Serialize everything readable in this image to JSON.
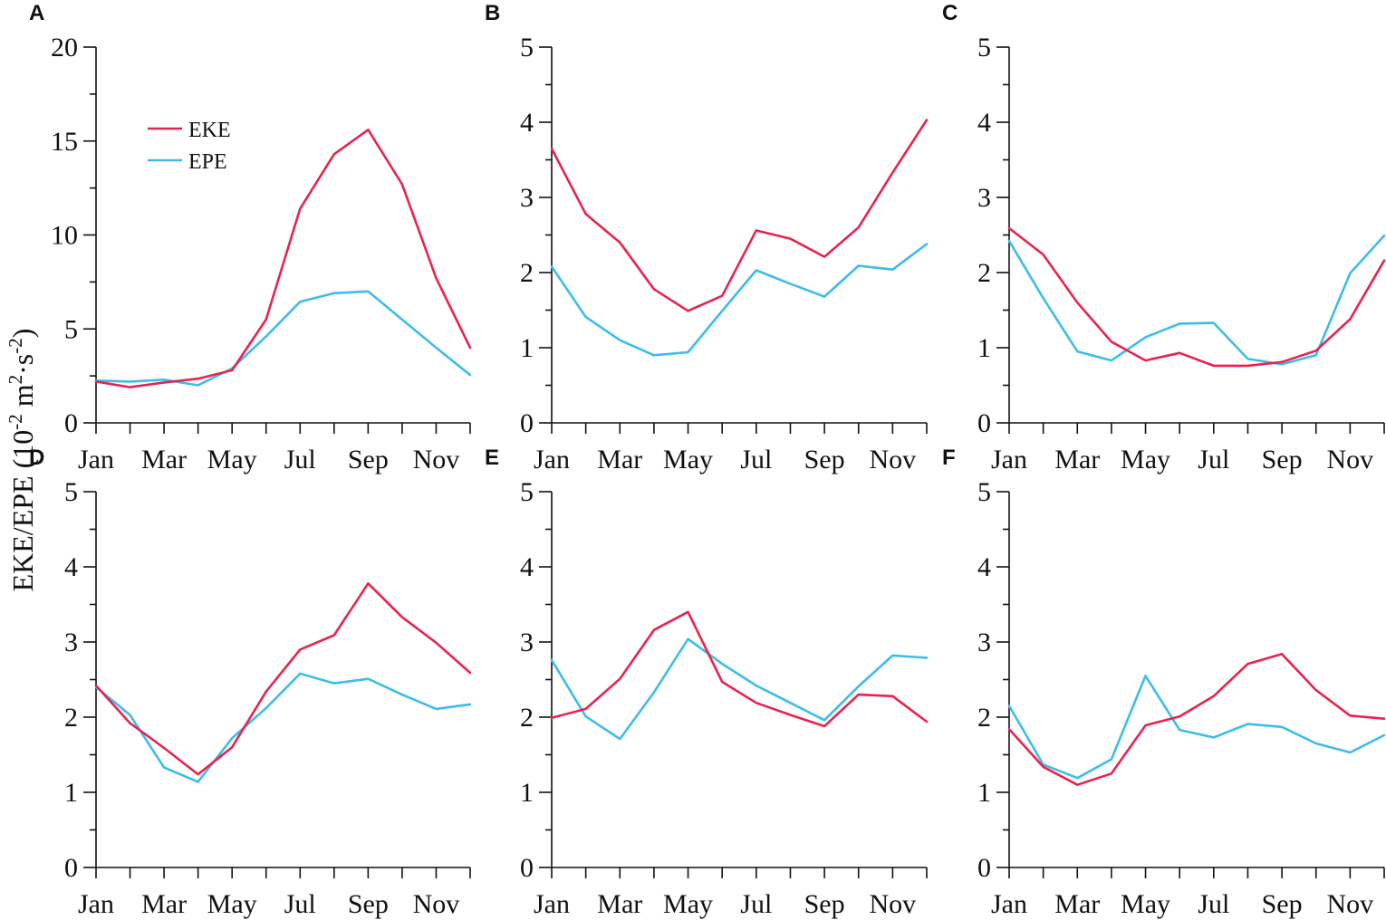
{
  "ylabel": {
    "main": "EKE/EPE (10",
    "exp1": "-2",
    "mid": " m",
    "exp2": "2",
    "mid2": "·s",
    "exp3": "-2",
    "tail": ")"
  },
  "legend": {
    "eke": "EKE",
    "epe": "EPE"
  },
  "colors": {
    "EKE": "#e8234f",
    "EPE": "#3dbde8"
  },
  "chart_data": [
    {
      "type": "line",
      "panel": "A",
      "categories": [
        "Jan",
        "Feb",
        "Mar",
        "Apr",
        "May",
        "Jun",
        "Jul",
        "Aug",
        "Sep",
        "Oct",
        "Nov",
        "Dec"
      ],
      "x_tick_labels": [
        "Jan",
        "Mar",
        "May",
        "Jul",
        "Sep",
        "Nov"
      ],
      "ylim": [
        0,
        20
      ],
      "yticks": [
        "0",
        "5",
        "10",
        "15",
        "20"
      ],
      "series": [
        {
          "name": "EKE",
          "values": [
            2.2,
            1.9,
            2.15,
            2.35,
            2.8,
            5.5,
            11.4,
            14.3,
            15.6,
            12.7,
            7.7,
            4.0
          ]
        },
        {
          "name": "EPE",
          "values": [
            2.25,
            2.2,
            2.3,
            2.0,
            2.9,
            4.6,
            6.45,
            6.9,
            7.0,
            5.5,
            4.0,
            2.55
          ]
        }
      ]
    },
    {
      "type": "line",
      "panel": "B",
      "categories": [
        "Jan",
        "Feb",
        "Mar",
        "Apr",
        "May",
        "Jun",
        "Jul",
        "Aug",
        "Sep",
        "Oct",
        "Nov",
        "Dec"
      ],
      "x_tick_labels": [
        "Jan",
        "Mar",
        "May",
        "Jul",
        "Sep",
        "Nov"
      ],
      "ylim": [
        0,
        5
      ],
      "yticks": [
        "0",
        "1",
        "2",
        "3",
        "4",
        "5"
      ],
      "series": [
        {
          "name": "EKE",
          "values": [
            3.65,
            2.78,
            2.4,
            1.78,
            1.49,
            1.69,
            2.56,
            2.45,
            2.21,
            2.6,
            3.33,
            4.03
          ]
        },
        {
          "name": "EPE",
          "values": [
            2.08,
            1.41,
            1.1,
            0.9,
            0.94,
            1.49,
            2.03,
            1.85,
            1.68,
            2.09,
            2.04,
            2.38
          ]
        }
      ]
    },
    {
      "type": "line",
      "panel": "C",
      "categories": [
        "Jan",
        "Feb",
        "Mar",
        "Apr",
        "May",
        "Jun",
        "Jul",
        "Aug",
        "Sep",
        "Oct",
        "Nov",
        "Dec"
      ],
      "x_tick_labels": [
        "Jan",
        "Mar",
        "May",
        "Jul",
        "Sep",
        "Nov"
      ],
      "ylim": [
        0,
        5
      ],
      "yticks": [
        "0",
        "1",
        "2",
        "3",
        "4",
        "5"
      ],
      "series": [
        {
          "name": "EKE",
          "values": [
            2.59,
            2.24,
            1.6,
            1.08,
            0.83,
            0.93,
            0.76,
            0.76,
            0.81,
            0.96,
            1.38,
            2.16
          ]
        },
        {
          "name": "EPE",
          "values": [
            2.42,
            1.66,
            0.95,
            0.83,
            1.14,
            1.32,
            1.33,
            0.85,
            0.78,
            0.9,
            1.99,
            2.49
          ]
        }
      ]
    },
    {
      "type": "line",
      "panel": "D",
      "categories": [
        "Jan",
        "Feb",
        "Mar",
        "Apr",
        "May",
        "Jun",
        "Jul",
        "Aug",
        "Sep",
        "Oct",
        "Nov",
        "Dec"
      ],
      "x_tick_labels": [
        "Jan",
        "Mar",
        "May",
        "Jul",
        "Sep",
        "Nov"
      ],
      "ylim": [
        0,
        5
      ],
      "yticks": [
        "0",
        "1",
        "2",
        "3",
        "4",
        "5"
      ],
      "series": [
        {
          "name": "EKE",
          "values": [
            2.42,
            1.92,
            1.59,
            1.24,
            1.6,
            2.34,
            2.9,
            3.09,
            3.78,
            3.33,
            2.99,
            2.59
          ]
        },
        {
          "name": "EPE",
          "values": [
            2.4,
            2.03,
            1.33,
            1.14,
            1.72,
            2.12,
            2.58,
            2.45,
            2.51,
            2.3,
            2.11,
            2.17
          ]
        }
      ]
    },
    {
      "type": "line",
      "panel": "E",
      "categories": [
        "Jan",
        "Feb",
        "Mar",
        "Apr",
        "May",
        "Jun",
        "Jul",
        "Aug",
        "Sep",
        "Oct",
        "Nov",
        "Dec"
      ],
      "x_tick_labels": [
        "Jan",
        "Mar",
        "May",
        "Jul",
        "Sep",
        "Nov"
      ],
      "ylim": [
        0,
        5
      ],
      "yticks": [
        "0",
        "1",
        "2",
        "3",
        "4",
        "5"
      ],
      "series": [
        {
          "name": "EKE",
          "values": [
            1.99,
            2.11,
            2.51,
            3.16,
            3.4,
            2.47,
            2.19,
            2.03,
            1.88,
            2.3,
            2.28,
            1.94
          ]
        },
        {
          "name": "EPE",
          "values": [
            2.76,
            2.01,
            1.71,
            2.33,
            3.04,
            2.71,
            2.42,
            2.19,
            1.96,
            2.41,
            2.82,
            2.79
          ]
        }
      ]
    },
    {
      "type": "line",
      "panel": "F",
      "categories": [
        "Jan",
        "Feb",
        "Mar",
        "Apr",
        "May",
        "Jun",
        "Jul",
        "Aug",
        "Sep",
        "Oct",
        "Nov",
        "Dec"
      ],
      "x_tick_labels": [
        "Jan",
        "Mar",
        "May",
        "Jul",
        "Sep",
        "Nov"
      ],
      "ylim": [
        0,
        5
      ],
      "yticks": [
        "0",
        "1",
        "2",
        "3",
        "4",
        "5"
      ],
      "series": [
        {
          "name": "EKE",
          "values": [
            1.84,
            1.34,
            1.1,
            1.25,
            1.89,
            2.01,
            2.28,
            2.71,
            2.84,
            2.36,
            2.02,
            1.98
          ]
        },
        {
          "name": "EPE",
          "values": [
            2.15,
            1.37,
            1.19,
            1.44,
            2.55,
            1.83,
            1.73,
            1.91,
            1.87,
            1.65,
            1.53,
            1.76
          ]
        }
      ]
    }
  ]
}
